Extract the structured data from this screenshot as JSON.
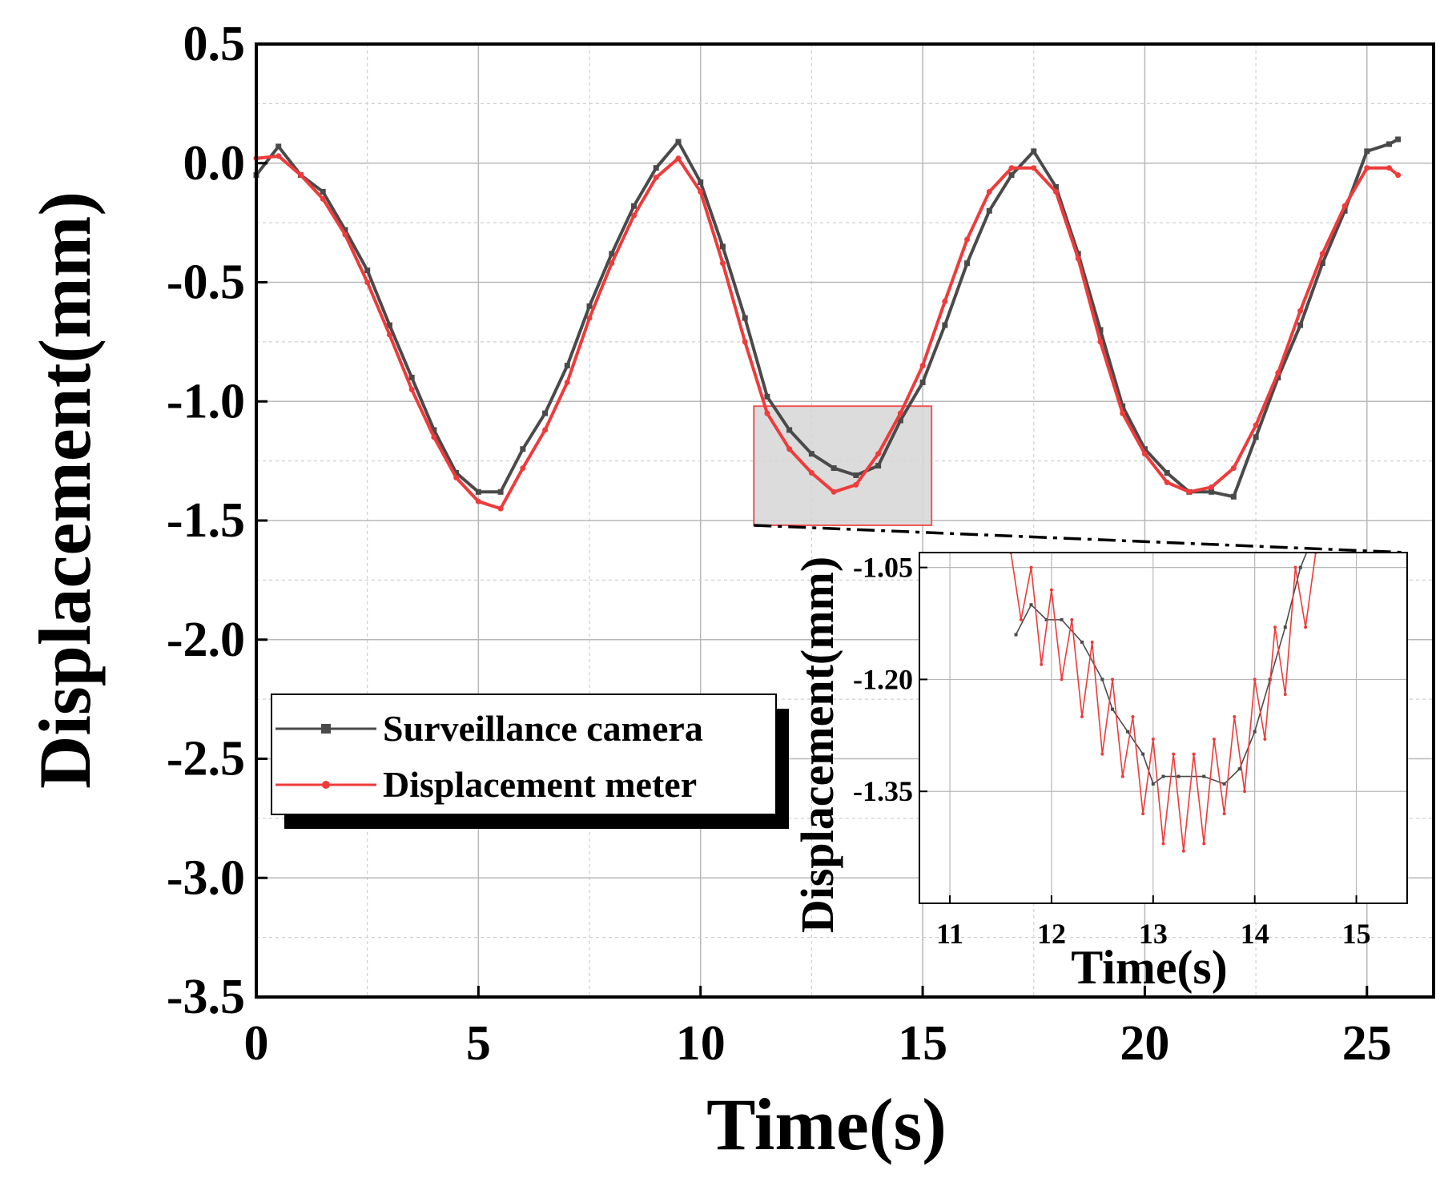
{
  "chart_data": [
    {
      "type": "line",
      "xlabel": "Time(s)",
      "ylabel": "Displacement(mm)",
      "xlim": [
        0,
        26.5
      ],
      "ylim": [
        -3.5,
        0.5
      ],
      "x_ticks": [
        "0",
        "5",
        "10",
        "15",
        "20",
        "25"
      ],
      "y_ticks": [
        "0.5",
        "0.0",
        "-0.5",
        "-1.0",
        "-1.5",
        "-2.0",
        "-2.5",
        "-3.0",
        "-3.5"
      ],
      "grid": true,
      "legend_position": "lower-left",
      "zoom_region": {
        "x": [
          11.2,
          15.2
        ],
        "y": [
          -1.52,
          -1.02
        ]
      },
      "series": [
        {
          "name": "Surveillance camera",
          "color": "#4a4a4a",
          "x": [
            0,
            0.5,
            1,
            1.5,
            2,
            2.5,
            3,
            3.5,
            4,
            4.5,
            5,
            5.5,
            6,
            6.5,
            7,
            7.5,
            8,
            8.5,
            9,
            9.5,
            10,
            10.5,
            11,
            11.5,
            12,
            12.5,
            13,
            13.5,
            14,
            14.5,
            15,
            15.5,
            16,
            16.5,
            17,
            17.5,
            18,
            18.5,
            19,
            19.5,
            20,
            20.5,
            21,
            21.5,
            22,
            22.5,
            23,
            23.5,
            24,
            24.5,
            25,
            25.5,
            25.7
          ],
          "y": [
            -0.05,
            0.07,
            -0.05,
            -0.12,
            -0.28,
            -0.45,
            -0.68,
            -0.9,
            -1.12,
            -1.3,
            -1.38,
            -1.38,
            -1.2,
            -1.05,
            -0.85,
            -0.6,
            -0.38,
            -0.18,
            -0.02,
            0.09,
            -0.08,
            -0.35,
            -0.65,
            -0.98,
            -1.12,
            -1.22,
            -1.28,
            -1.31,
            -1.27,
            -1.08,
            -0.92,
            -0.68,
            -0.42,
            -0.2,
            -0.05,
            0.05,
            -0.1,
            -0.38,
            -0.7,
            -1.02,
            -1.2,
            -1.3,
            -1.38,
            -1.38,
            -1.4,
            -1.15,
            -0.9,
            -0.68,
            -0.42,
            -0.2,
            0.05,
            0.08,
            0.1
          ]
        },
        {
          "name": "Displacement meter",
          "color": "#ee3b3b",
          "x": [
            0,
            0.5,
            1,
            1.5,
            2,
            2.5,
            3,
            3.5,
            4,
            4.5,
            5,
            5.5,
            6,
            6.5,
            7,
            7.5,
            8,
            8.5,
            9,
            9.5,
            10,
            10.5,
            11,
            11.5,
            12,
            12.5,
            13,
            13.5,
            14,
            14.5,
            15,
            15.5,
            16,
            16.5,
            17,
            17.5,
            18,
            18.5,
            19,
            19.5,
            20,
            20.5,
            21,
            21.5,
            22,
            22.5,
            23,
            23.5,
            24,
            24.5,
            25,
            25.5,
            25.7
          ],
          "y": [
            0.02,
            0.03,
            -0.05,
            -0.15,
            -0.3,
            -0.5,
            -0.72,
            -0.95,
            -1.15,
            -1.32,
            -1.42,
            -1.45,
            -1.28,
            -1.12,
            -0.92,
            -0.65,
            -0.42,
            -0.22,
            -0.06,
            0.02,
            -0.12,
            -0.42,
            -0.75,
            -1.05,
            -1.2,
            -1.3,
            -1.38,
            -1.35,
            -1.22,
            -1.05,
            -0.85,
            -0.58,
            -0.32,
            -0.12,
            -0.02,
            -0.02,
            -0.12,
            -0.4,
            -0.75,
            -1.05,
            -1.22,
            -1.34,
            -1.38,
            -1.36,
            -1.28,
            -1.1,
            -0.88,
            -0.62,
            -0.38,
            -0.18,
            -0.02,
            -0.02,
            -0.05
          ]
        }
      ]
    },
    {
      "type": "line",
      "xlabel": "Time(s)",
      "ylabel": "Displacement(mm)",
      "xlim": [
        10.7,
        15.5
      ],
      "ylim": [
        -1.5,
        -1.03
      ],
      "x_ticks": [
        "11",
        "12",
        "13",
        "14",
        "15"
      ],
      "y_ticks": [
        "-1.05",
        "-1.20",
        "-1.35"
      ],
      "grid": true,
      "series": [
        {
          "name": "Surveillance camera",
          "color": "#4a4a4a",
          "x": [
            11.65,
            11.8,
            11.95,
            12.1,
            12.3,
            12.5,
            12.6,
            12.75,
            12.9,
            13.0,
            13.1,
            13.25,
            13.5,
            13.7,
            13.85,
            14.0,
            14.15,
            14.3,
            14.45,
            14.6
          ],
          "y": [
            -1.14,
            -1.1,
            -1.12,
            -1.12,
            -1.15,
            -1.2,
            -1.24,
            -1.27,
            -1.3,
            -1.34,
            -1.33,
            -1.33,
            -1.33,
            -1.34,
            -1.32,
            -1.27,
            -1.2,
            -1.13,
            -1.05,
            -1.0
          ]
        },
        {
          "name": "Displacement meter",
          "color": "#ee3b3b",
          "x": [
            11.6,
            11.7,
            11.8,
            11.9,
            12.0,
            12.1,
            12.2,
            12.3,
            12.4,
            12.5,
            12.6,
            12.7,
            12.8,
            12.9,
            13.0,
            13.1,
            13.2,
            13.3,
            13.4,
            13.5,
            13.6,
            13.7,
            13.8,
            13.9,
            14.0,
            14.1,
            14.2,
            14.3,
            14.4,
            14.5,
            14.6
          ],
          "y": [
            -1.03,
            -1.12,
            -1.05,
            -1.18,
            -1.08,
            -1.2,
            -1.12,
            -1.25,
            -1.15,
            -1.3,
            -1.2,
            -1.33,
            -1.25,
            -1.38,
            -1.28,
            -1.42,
            -1.3,
            -1.43,
            -1.3,
            -1.42,
            -1.28,
            -1.38,
            -1.25,
            -1.35,
            -1.2,
            -1.28,
            -1.13,
            -1.22,
            -1.05,
            -1.13,
            -1.03
          ]
        }
      ]
    }
  ]
}
